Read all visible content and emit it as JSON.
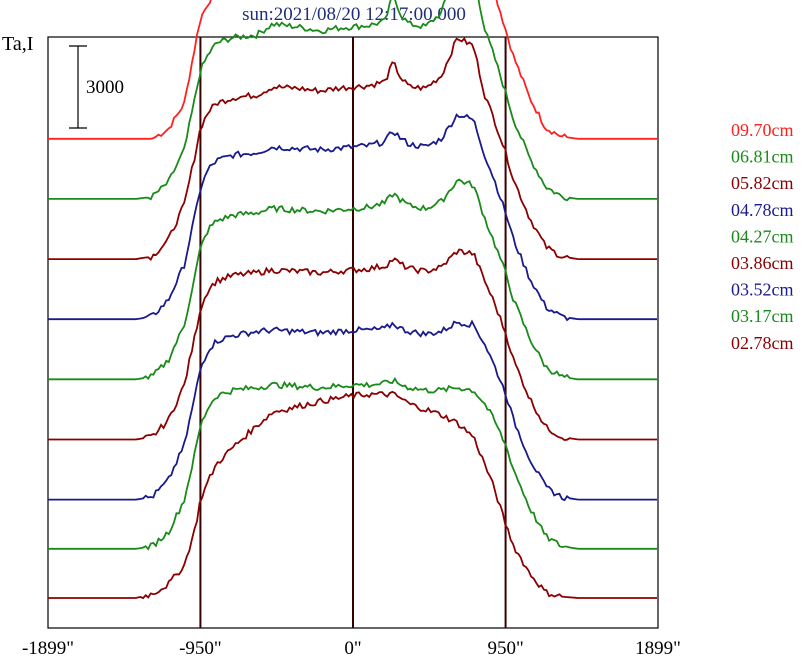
{
  "chart_data": {
    "type": "line",
    "title": "sun:2021/08/20 12:17:00.000",
    "ylabel": "Ta,I",
    "scale_bar_label": "3000",
    "scale_bar_value": 3000,
    "xlim": [
      -1899,
      1899
    ],
    "xticks": [
      {
        "value": -1899,
        "label": "-1899\""
      },
      {
        "value": -950,
        "label": "-950\""
      },
      {
        "value": 0,
        "label": "0\""
      },
      {
        "value": 950,
        "label": "950\""
      },
      {
        "value": 1899,
        "label": "1899\""
      }
    ],
    "vlines": [
      -950,
      0,
      950
    ],
    "profile_x": [
      -1899,
      -1350,
      -1250,
      -1150,
      -1050,
      -980,
      -950,
      -900,
      -850,
      -750,
      -600,
      -500,
      -350,
      -200,
      -100,
      0,
      100,
      200,
      250,
      300,
      350,
      450,
      550,
      650,
      750,
      820,
      880,
      950,
      1000,
      1100,
      1200,
      1300,
      1400,
      1899
    ],
    "series": [
      {
        "name": "09.70cm",
        "color": "#ff2020",
        "offset": 16800,
        "peak_scale": 1.0,
        "values": [
          0,
          0,
          0,
          350,
          1300,
          3500,
          4400,
          5000,
          5400,
          5700,
          5900,
          6400,
          6200,
          6000,
          6200,
          6300,
          6400,
          6700,
          8300,
          6900,
          6600,
          6500,
          7100,
          9600,
          9200,
          6500,
          5400,
          4000,
          3000,
          1500,
          400,
          80,
          0,
          0
        ]
      },
      {
        "name": "06.81cm",
        "color": "#1a8a1a",
        "offset": 14600,
        "peak_scale": 0.75,
        "values": [
          0,
          0,
          80,
          600,
          1800,
          3800,
          4700,
          5300,
          5700,
          5900,
          6000,
          6400,
          6300,
          6150,
          6250,
          6300,
          6350,
          6500,
          7500,
          6700,
          6400,
          6300,
          6800,
          8600,
          8300,
          6200,
          5200,
          3900,
          2900,
          1500,
          450,
          90,
          0,
          0
        ]
      },
      {
        "name": "05.82cm",
        "color": "#8b0000",
        "offset": 12400,
        "peak_scale": 0.7,
        "values": [
          0,
          0,
          100,
          700,
          2000,
          3900,
          4800,
          5400,
          5700,
          5900,
          6000,
          6300,
          6250,
          6150,
          6250,
          6300,
          6350,
          6500,
          7200,
          6600,
          6300,
          6250,
          6700,
          8100,
          7800,
          6000,
          5100,
          3900,
          2900,
          1500,
          450,
          90,
          0,
          0
        ]
      },
      {
        "name": "04.78cm",
        "color": "#1a1a8b",
        "offset": 10200,
        "peak_scale": 0.6,
        "values": [
          0,
          0,
          100,
          700,
          2000,
          3900,
          4800,
          5500,
          5800,
          6000,
          6100,
          6300,
          6250,
          6200,
          6250,
          6300,
          6350,
          6500,
          6900,
          6600,
          6400,
          6300,
          6600,
          7500,
          7300,
          6000,
          5100,
          3900,
          2900,
          1500,
          450,
          90,
          0,
          0
        ]
      },
      {
        "name": "04.27cm",
        "color": "#1a8a1a",
        "offset": 8000,
        "peak_scale": 0.55,
        "values": [
          0,
          0,
          100,
          700,
          2000,
          3900,
          4800,
          5500,
          5800,
          6000,
          6100,
          6250,
          6200,
          6150,
          6200,
          6250,
          6300,
          6450,
          6800,
          6550,
          6350,
          6250,
          6500,
          7300,
          7100,
          5900,
          5000,
          3900,
          2900,
          1500,
          450,
          90,
          0,
          0
        ]
      },
      {
        "name": "03.86cm",
        "color": "#8b0000",
        "offset": 5800,
        "peak_scale": 0.5,
        "values": [
          0,
          0,
          100,
          700,
          2000,
          3900,
          4800,
          5500,
          5800,
          6000,
          6100,
          6200,
          6150,
          6100,
          6150,
          6200,
          6250,
          6350,
          6600,
          6400,
          6250,
          6150,
          6300,
          6900,
          6800,
          5800,
          5000,
          3900,
          2900,
          1500,
          450,
          90,
          0,
          0
        ]
      },
      {
        "name": "03.52cm",
        "color": "#1a1a8b",
        "offset": 3600,
        "peak_scale": 0.45,
        "values": [
          0,
          0,
          100,
          700,
          2000,
          3900,
          4800,
          5500,
          5800,
          6000,
          6150,
          6200,
          6150,
          6100,
          6150,
          6200,
          6200,
          6250,
          6450,
          6250,
          6150,
          6050,
          6150,
          6500,
          6400,
          5700,
          4900,
          3900,
          2900,
          1500,
          450,
          90,
          0,
          0
        ]
      },
      {
        "name": "03.17cm",
        "color": "#1a8a1a",
        "offset": 1800,
        "peak_scale": 0.4,
        "values": [
          0,
          0,
          100,
          600,
          1800,
          3600,
          4500,
          5200,
          5600,
          5800,
          5900,
          6000,
          5950,
          5900,
          5950,
          6000,
          6000,
          6050,
          6150,
          6000,
          5900,
          5800,
          5800,
          5900,
          5800,
          5300,
          4700,
          3800,
          2900,
          1500,
          450,
          90,
          0,
          0
        ]
      },
      {
        "name": "02.78cm",
        "color": "#8b0000",
        "offset": 0,
        "peak_scale": 0.35,
        "values": [
          0,
          0,
          150,
          500,
          1200,
          2600,
          3600,
          4300,
          4900,
          5500,
          6300,
          6800,
          7000,
          7200,
          7300,
          7400,
          7450,
          7450,
          7450,
          7300,
          7100,
          6900,
          6700,
          6400,
          5900,
          4900,
          4000,
          2700,
          1900,
          900,
          200,
          50,
          0,
          0
        ]
      }
    ]
  }
}
